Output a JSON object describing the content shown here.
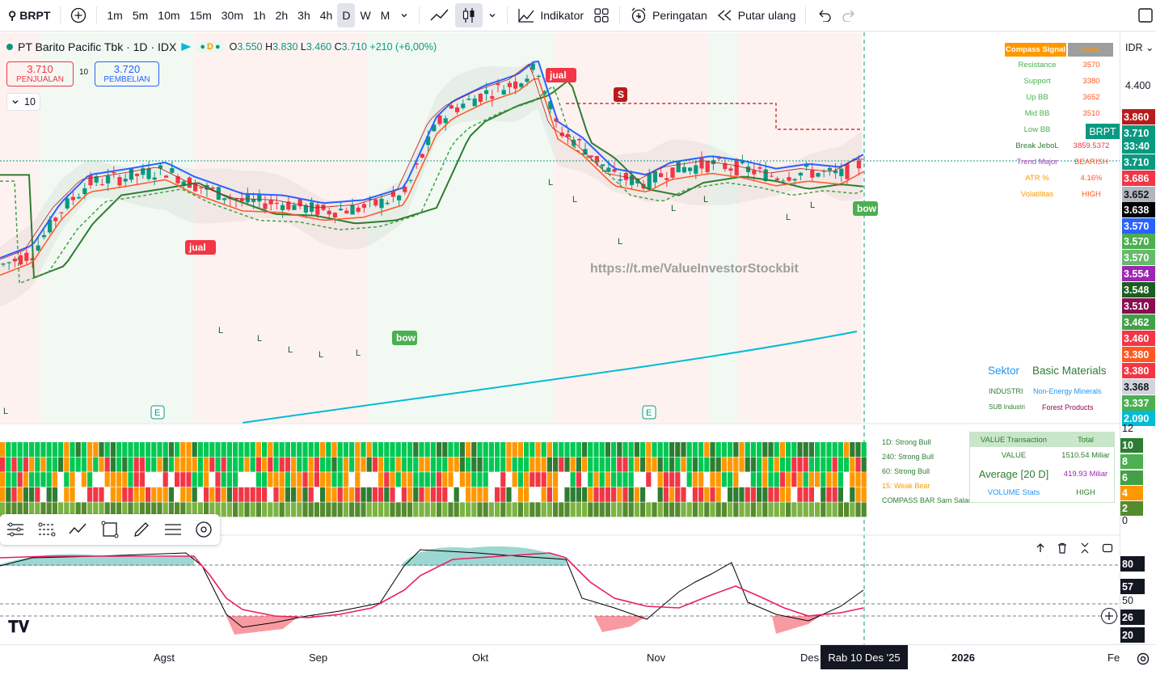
{
  "toolbar": {
    "symbol": "BRPT",
    "intervals": [
      "1m",
      "5m",
      "10m",
      "15m",
      "30m",
      "1h",
      "2h",
      "3h",
      "4h",
      "D",
      "W",
      "M"
    ],
    "active_interval": "D",
    "indicators_label": "Indikator",
    "alerts_label": "Peringatan",
    "replay_label": "Putar ulang"
  },
  "legend": {
    "title": "PT Barito Pacific Tbk · 1D · IDX",
    "o_label": "O",
    "o": "3.550",
    "h_label": "H",
    "h": "3.830",
    "l_label": "L",
    "l": "3.460",
    "c_label": "C",
    "c": "3.710",
    "change": "+210 (+6,00%)",
    "sell_price": "3.710",
    "sell_label": "PENJUALAN",
    "spread": "10",
    "buy_price": "3.720",
    "buy_label": "PEMBELIAN",
    "indicators_count": "10"
  },
  "compass_table": {
    "header": [
      "Compass Signal",
      "Value"
    ],
    "rows": [
      {
        "label": "Resistance",
        "value": "3570"
      },
      {
        "label": "Support",
        "value": "3380"
      },
      {
        "label": "Up BB",
        "value": "3652"
      },
      {
        "label": "Mid BB",
        "value": "3510"
      },
      {
        "label": "Low BB",
        "value": "3"
      },
      {
        "label": "Break JeboL",
        "value": "3859.5372"
      },
      {
        "label": "Trend Major",
        "value": "BEARISH"
      },
      {
        "label": "ATR %",
        "value": "4.16%"
      },
      {
        "label": "Volatilitas",
        "value": "HIGH"
      }
    ]
  },
  "chart_annotations": {
    "watermark": "https://t.me/ValueInvestorStockbit",
    "sell_tag": "jual",
    "buy_tag": "bow",
    "s_tag": "S",
    "l_tag": "L",
    "e_tag": "E",
    "sector_label": "Sektor",
    "sector_value": "Basic Materials",
    "industry_label": "INDUSTRI",
    "industry_value": "Non-Energy Minerals",
    "subindustry_label": "SUB Industri",
    "subindustry_value": "Forest Products"
  },
  "compass_bar": {
    "labels": [
      "1D: Strong Bull",
      "240: Strong Bull",
      "60: Strong Bull",
      "15: Weak Bear",
      "COMPASS BAR Sam Salamun"
    ]
  },
  "value_table": {
    "header": [
      "VALUE Transaction",
      "Total"
    ],
    "value_label": "VALUE",
    "value": "1510.54 Miliar",
    "avg_label": "Average [20 D]",
    "avg": "419.93 Miliar",
    "vol_label": "VOLUME Stats",
    "vol": "HIGH"
  },
  "price_axis": {
    "currency": "IDR",
    "top_tick": "4.400",
    "labels": [
      {
        "v": "3.860",
        "color": "#b71c1c"
      },
      {
        "v": "3.710",
        "color": "#089981"
      },
      {
        "v": "33:40",
        "color": "#089981"
      },
      {
        "v": "3.710",
        "color": "#089981"
      },
      {
        "v": "3.686",
        "color": "#f23645"
      },
      {
        "v": "3.652",
        "color": "#b2b5be"
      },
      {
        "v": "3.638",
        "color": "#000000"
      },
      {
        "v": "3.570",
        "color": "#2962ff"
      },
      {
        "v": "3.570",
        "color": "#4caf50"
      },
      {
        "v": "3.570",
        "color": "#66bb6a"
      },
      {
        "v": "3.554",
        "color": "#9c27b0"
      },
      {
        "v": "3.548",
        "color": "#1b5e20"
      },
      {
        "v": "3.510",
        "color": "#880e4f"
      },
      {
        "v": "3.462",
        "color": "#43a047"
      },
      {
        "v": "3.460",
        "color": "#f23645"
      },
      {
        "v": "3.380",
        "color": "#ff5722"
      },
      {
        "v": "3.380",
        "color": "#f23645"
      },
      {
        "v": "3.368",
        "color": "#d1d4dc"
      },
      {
        "v": "3.337",
        "color": "#4caf50"
      },
      {
        "v": "2.090",
        "color": "#00bcd4"
      }
    ],
    "badge": "BRPT",
    "compass_ticks": [
      "12",
      "10",
      "8",
      "6",
      "4",
      "2",
      "0"
    ],
    "osc_ticks": [
      "80",
      "57",
      "50",
      "26",
      "20"
    ]
  },
  "time_axis": {
    "labels": [
      "Agst",
      "Sep",
      "Okt",
      "Nov",
      "Des",
      "2026",
      "Fe"
    ],
    "cursor_label": "Rab 10 Des '25"
  }
}
